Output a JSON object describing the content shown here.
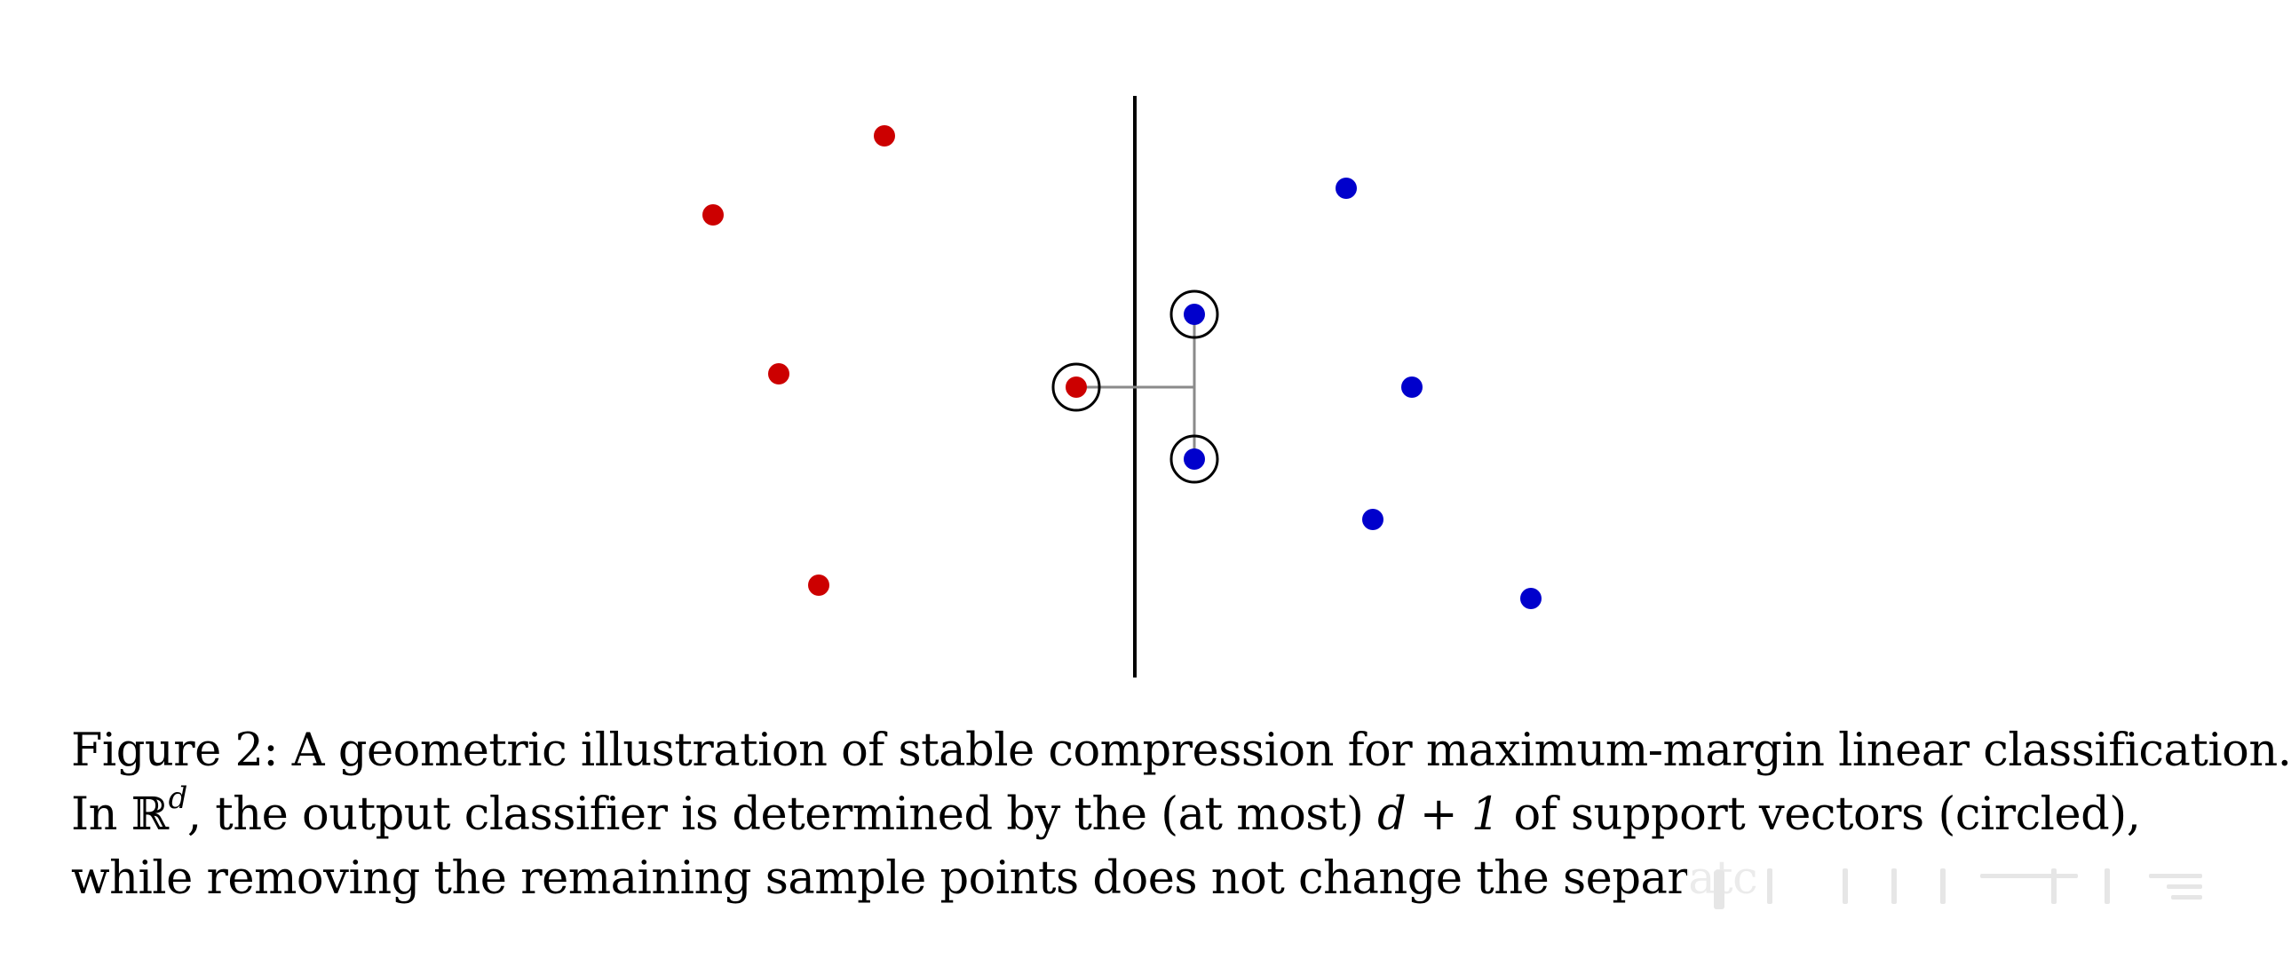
{
  "figure": {
    "colors": {
      "red_class": "#cc0000",
      "blue_class": "#0000cc",
      "separator": "#000000",
      "support_circle": "#000000",
      "margin_segment": "#8a8a8a"
    }
  },
  "caption": {
    "line1": "Figure 2: A geometric illustration of stable compression for maximum-margin linear classification.",
    "line2_a": "In ",
    "line2_R": "ℝ",
    "line2_sup": "d",
    "line2_b": ", the output classifier is determined by the (at most) ",
    "line2_math": "d + 1",
    "line2_c": " of support vectors (circled),",
    "line3": "while removing the remaining sample points does not change the separatc"
  },
  "watermark": {
    "icon": "watermark-icon"
  }
}
